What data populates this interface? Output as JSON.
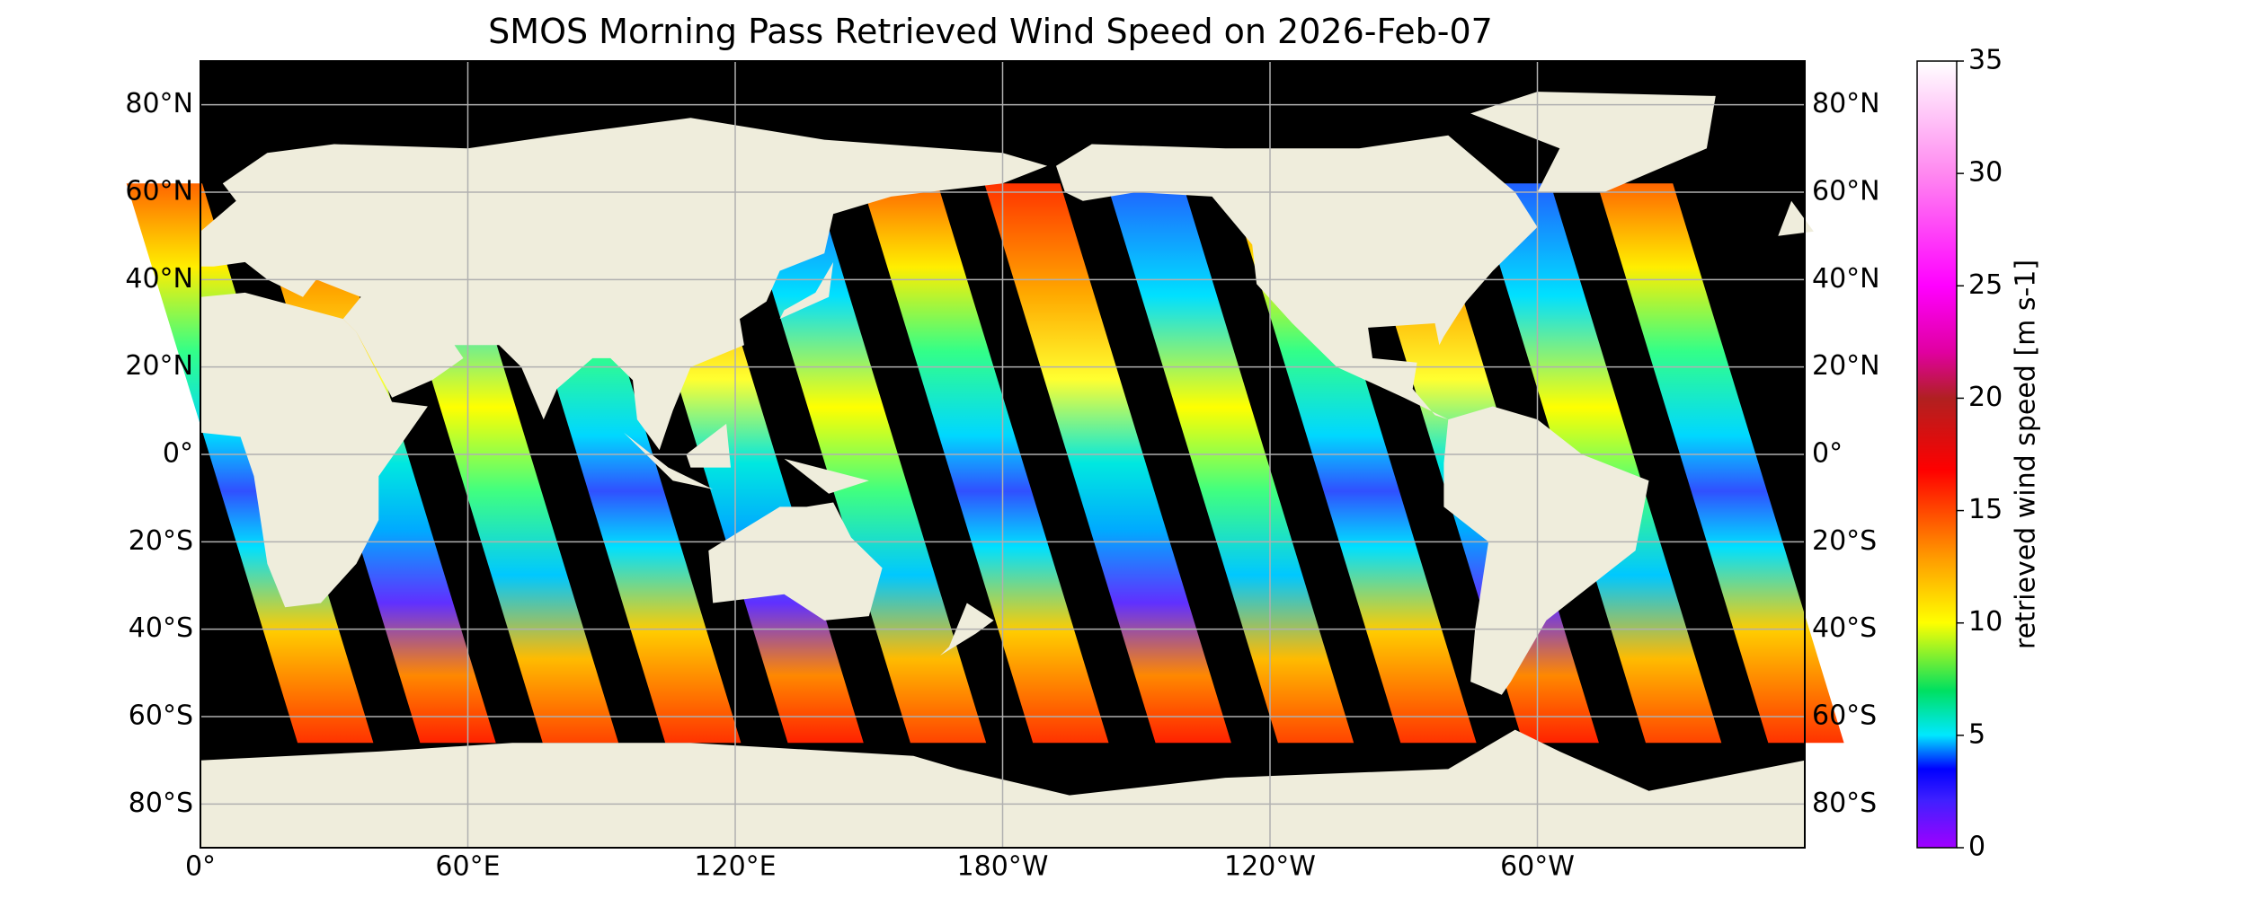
{
  "chart_data": {
    "type": "map",
    "title": "SMOS Morning Pass Retrieved Wind Speed on 2026-Feb-07",
    "xticks": [
      {
        "value": 0,
        "label": "0°"
      },
      {
        "value": 60,
        "label": "60°E"
      },
      {
        "value": 120,
        "label": "120°E"
      },
      {
        "value": 180,
        "label": "180°W"
      },
      {
        "value": -120,
        "label": "120°W"
      },
      {
        "value": -60,
        "label": "60°W"
      }
    ],
    "yticks": [
      {
        "value": 80,
        "label": "80°N"
      },
      {
        "value": 60,
        "label": "60°N"
      },
      {
        "value": 40,
        "label": "40°N"
      },
      {
        "value": 20,
        "label": "20°N"
      },
      {
        "value": 0,
        "label": "0°"
      },
      {
        "value": -20,
        "label": "20°S"
      },
      {
        "value": -40,
        "label": "40°S"
      },
      {
        "value": -60,
        "label": "60°S"
      },
      {
        "value": -80,
        "label": "80°S"
      }
    ],
    "grid": true,
    "colorbar": {
      "label": "retrieved wind speed [m s-1]",
      "lim": [
        0,
        35
      ],
      "ticks": [
        0,
        5,
        10,
        15,
        20,
        25,
        30,
        35
      ]
    }
  }
}
